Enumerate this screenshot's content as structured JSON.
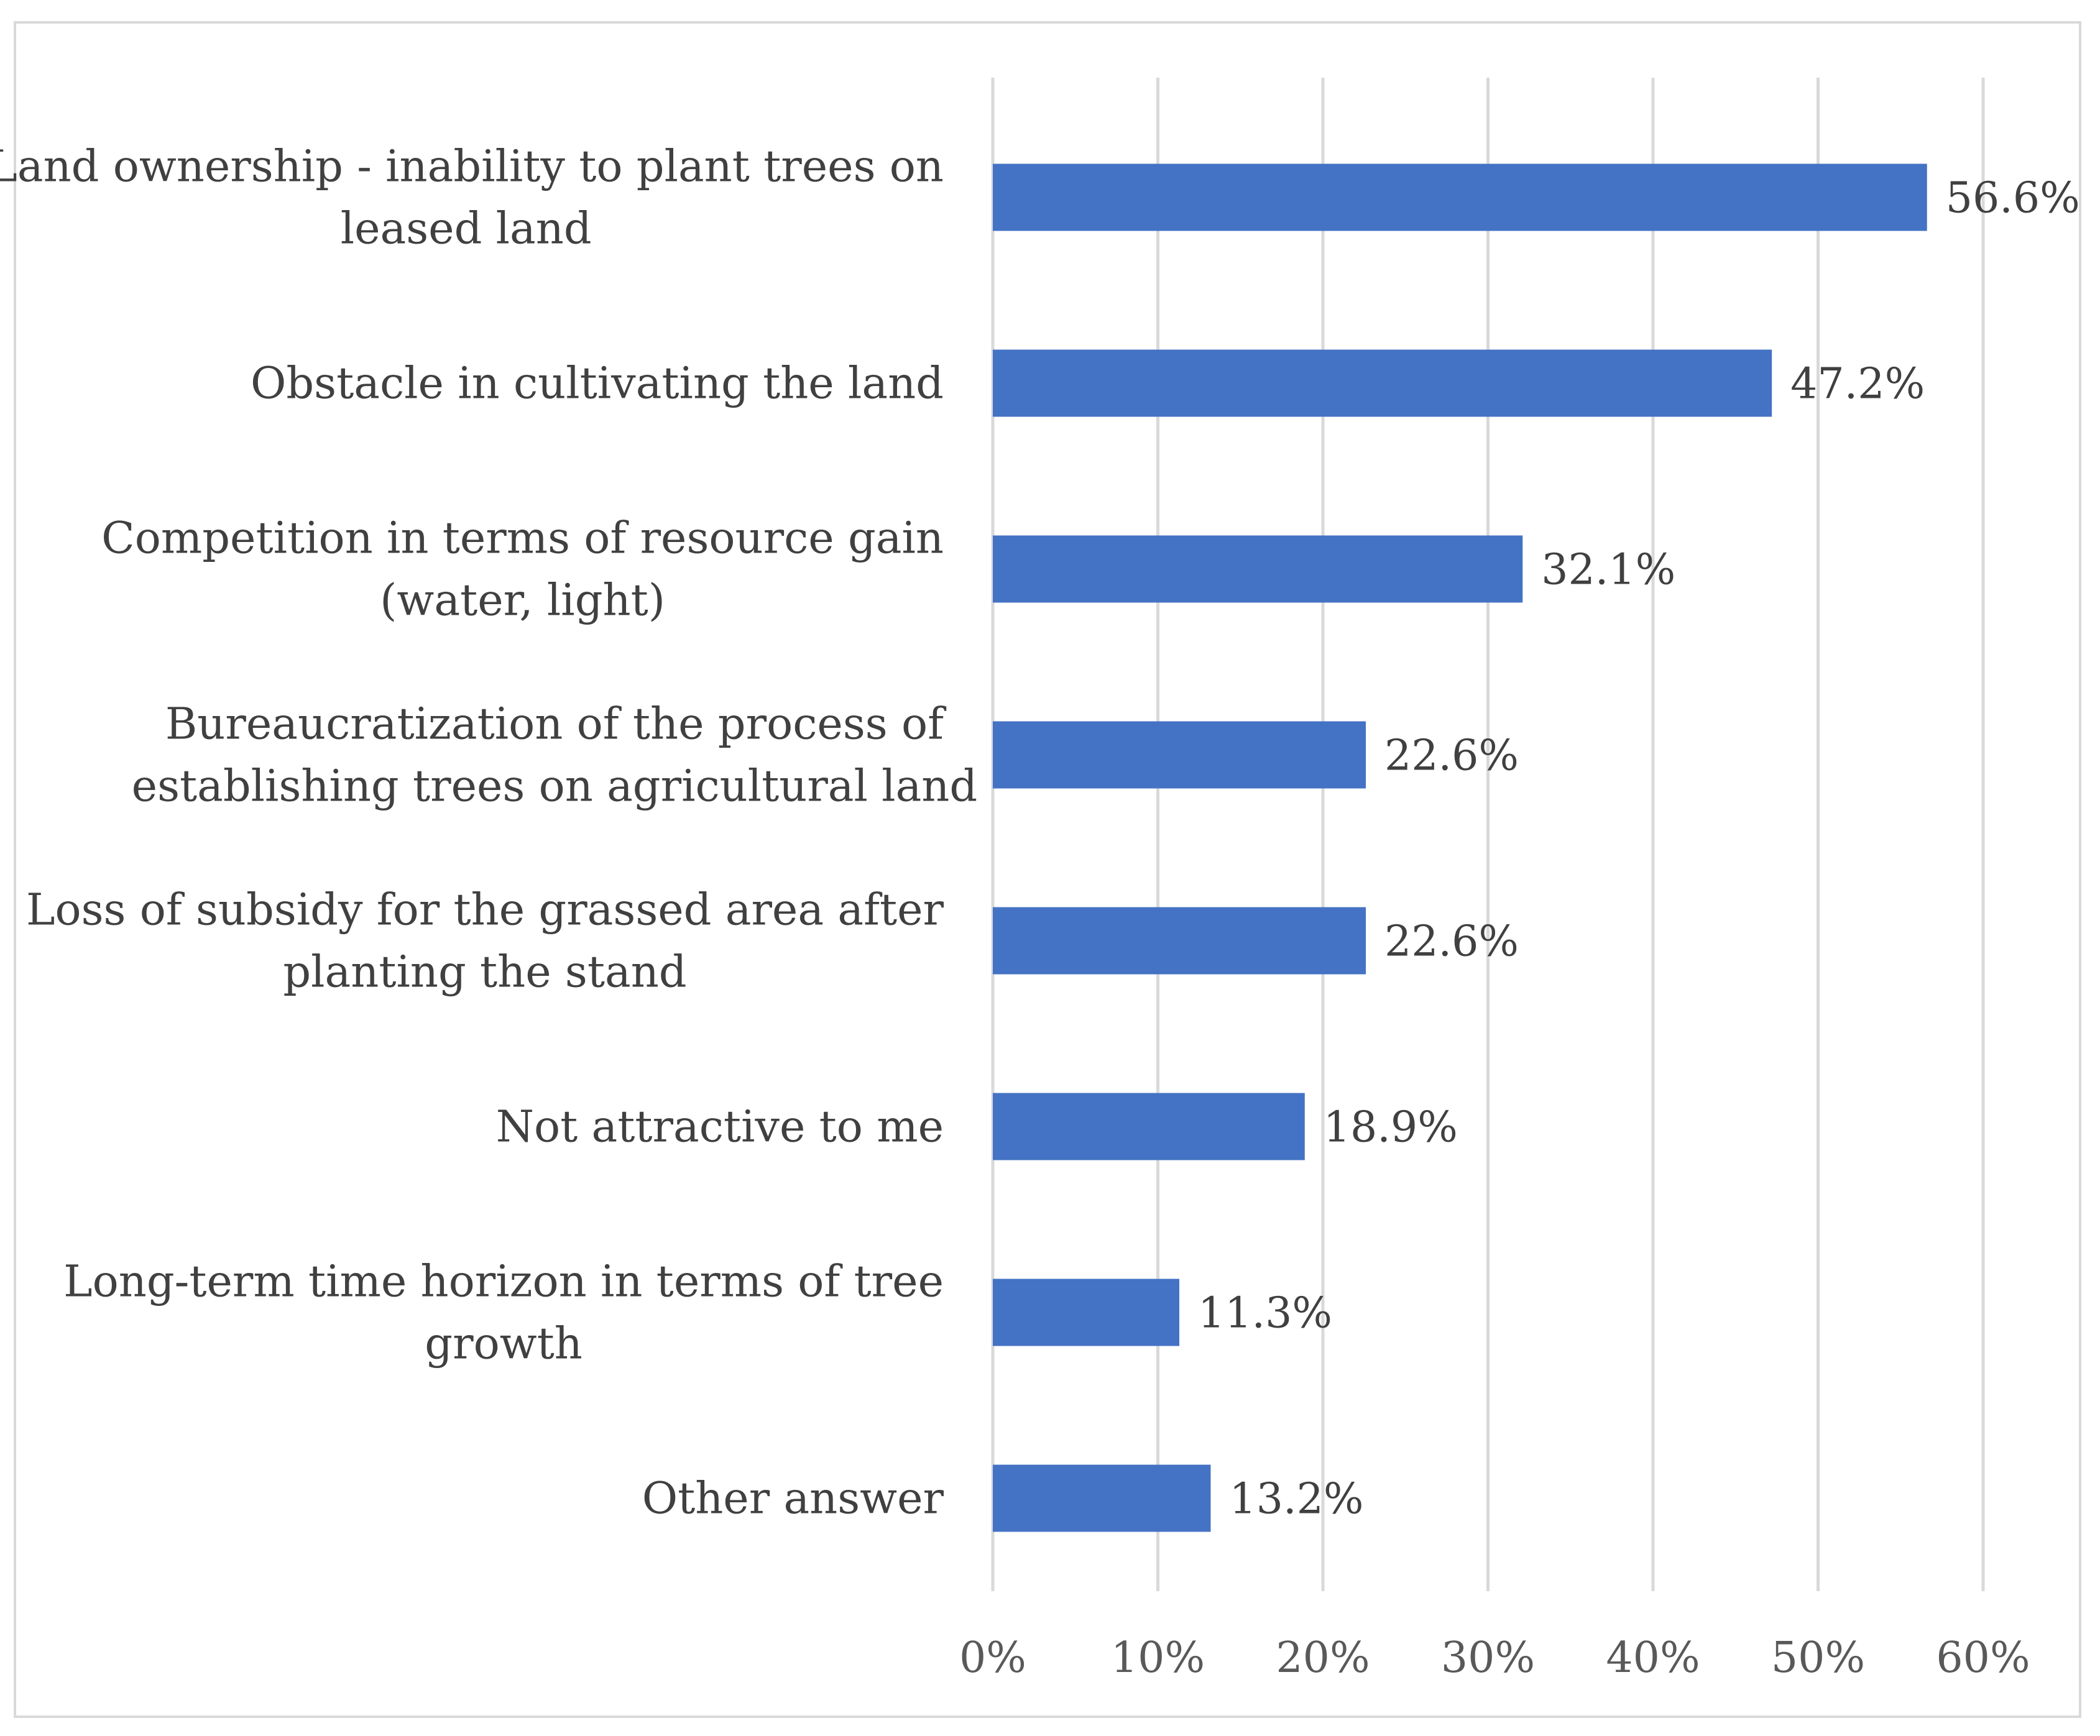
{
  "chart_data": {
    "type": "bar",
    "orientation": "horizontal",
    "title": "",
    "xlabel": "",
    "ylabel": "",
    "xlim": [
      0,
      60
    ],
    "x_ticks": [
      "0%",
      "10%",
      "20%",
      "30%",
      "40%",
      "50%",
      "60%"
    ],
    "x_tick_values": [
      0,
      10,
      20,
      30,
      40,
      50,
      60
    ],
    "grid": "vertical",
    "bar_color": "#4472C4",
    "categories": [
      [
        "Land ownership - inability to plant trees on",
        "leased land"
      ],
      [
        "Obstacle in cultivating the land"
      ],
      [
        "Competition in terms of resource gain",
        "(water, light)"
      ],
      [
        "Bureaucratization of the process of",
        "establishing trees on agricultural land"
      ],
      [
        "Loss of subsidy for the grassed area after",
        "planting the stand"
      ],
      [
        "Not attractive to me"
      ],
      [
        "Long-term time horizon in terms of tree",
        "growth"
      ],
      [
        "Other answer"
      ]
    ],
    "values": [
      56.6,
      47.2,
      32.1,
      22.6,
      22.6,
      18.9,
      11.3,
      13.2
    ],
    "data_labels": [
      "56.6%",
      "47.2%",
      "32.1%",
      "22.6%",
      "22.6%",
      "18.9%",
      "11.3%",
      "13.2%"
    ]
  }
}
